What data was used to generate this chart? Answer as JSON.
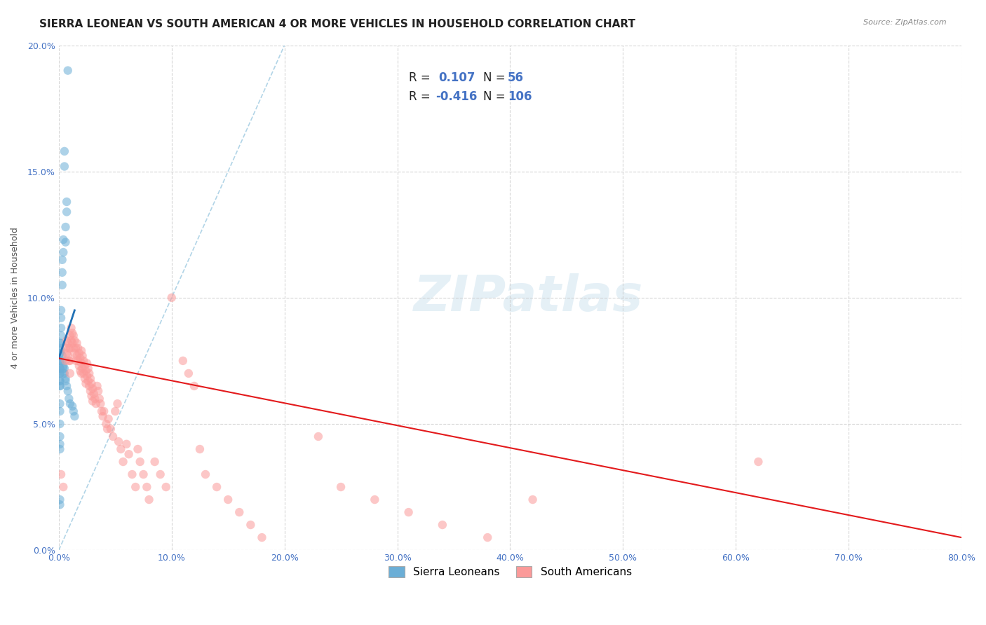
{
  "title": "SIERRA LEONEAN VS SOUTH AMERICAN 4 OR MORE VEHICLES IN HOUSEHOLD CORRELATION CHART",
  "source": "Source: ZipAtlas.com",
  "xlabel": "",
  "ylabel": "4 or more Vehicles in Household",
  "xlim": [
    0,
    0.8
  ],
  "ylim": [
    0,
    0.2
  ],
  "xticks": [
    0.0,
    0.1,
    0.2,
    0.3,
    0.4,
    0.5,
    0.6,
    0.7,
    0.8
  ],
  "yticks": [
    0.0,
    0.05,
    0.1,
    0.15,
    0.2
  ],
  "xlabel_labels": [
    "0.0%",
    "10.0%",
    "20.0%",
    "30.0%",
    "40.0%",
    "50.0%",
    "60.0%",
    "70.0%",
    "80.0%"
  ],
  "ylabel_labels": [
    "0.0%",
    "5.0%",
    "10.0%",
    "15.0%",
    "20.0%"
  ],
  "blue_color": "#6baed6",
  "pink_color": "#fb9a99",
  "blue_line_color": "#2171b5",
  "pink_line_color": "#e31a1c",
  "diag_line_color": "#9ecae1",
  "watermark": "ZIPatlas",
  "legend_R_blue": "0.107",
  "legend_N_blue": "56",
  "legend_R_pink": "-0.416",
  "legend_N_pink": "106",
  "blue_scatter_x": [
    0.008,
    0.005,
    0.005,
    0.007,
    0.007,
    0.006,
    0.006,
    0.004,
    0.004,
    0.003,
    0.003,
    0.003,
    0.002,
    0.002,
    0.002,
    0.002,
    0.001,
    0.001,
    0.001,
    0.001,
    0.001,
    0.001,
    0.001,
    0.001,
    0.002,
    0.002,
    0.003,
    0.003,
    0.004,
    0.004,
    0.004,
    0.005,
    0.005,
    0.006,
    0.006,
    0.007,
    0.008,
    0.009,
    0.01,
    0.012,
    0.013,
    0.014,
    0.001,
    0.001,
    0.001,
    0.001,
    0.001,
    0.001,
    0.001,
    0.001,
    0.001,
    0.001,
    0.001,
    0.001,
    0.001,
    0.001
  ],
  "blue_scatter_y": [
    0.19,
    0.158,
    0.152,
    0.138,
    0.134,
    0.128,
    0.122,
    0.123,
    0.118,
    0.115,
    0.11,
    0.105,
    0.095,
    0.092,
    0.088,
    0.085,
    0.082,
    0.08,
    0.078,
    0.075,
    0.072,
    0.07,
    0.067,
    0.065,
    0.082,
    0.079,
    0.077,
    0.075,
    0.073,
    0.072,
    0.07,
    0.072,
    0.07,
    0.068,
    0.067,
    0.065,
    0.063,
    0.06,
    0.058,
    0.057,
    0.055,
    0.053,
    0.078,
    0.075,
    0.072,
    0.07,
    0.067,
    0.065,
    0.058,
    0.055,
    0.05,
    0.045,
    0.042,
    0.04,
    0.02,
    0.018
  ],
  "pink_scatter_x": [
    0.002,
    0.004,
    0.006,
    0.006,
    0.007,
    0.007,
    0.008,
    0.008,
    0.009,
    0.009,
    0.01,
    0.01,
    0.01,
    0.01,
    0.011,
    0.011,
    0.012,
    0.012,
    0.013,
    0.013,
    0.014,
    0.014,
    0.015,
    0.015,
    0.016,
    0.016,
    0.017,
    0.017,
    0.018,
    0.018,
    0.019,
    0.019,
    0.02,
    0.02,
    0.02,
    0.021,
    0.021,
    0.022,
    0.022,
    0.023,
    0.023,
    0.024,
    0.024,
    0.025,
    0.025,
    0.026,
    0.026,
    0.027,
    0.027,
    0.028,
    0.028,
    0.029,
    0.029,
    0.03,
    0.03,
    0.031,
    0.032,
    0.033,
    0.034,
    0.035,
    0.036,
    0.037,
    0.038,
    0.039,
    0.04,
    0.042,
    0.043,
    0.044,
    0.046,
    0.048,
    0.05,
    0.052,
    0.053,
    0.055,
    0.057,
    0.06,
    0.062,
    0.065,
    0.068,
    0.07,
    0.072,
    0.075,
    0.078,
    0.08,
    0.085,
    0.09,
    0.095,
    0.1,
    0.11,
    0.115,
    0.12,
    0.125,
    0.13,
    0.14,
    0.15,
    0.16,
    0.17,
    0.18,
    0.23,
    0.25,
    0.28,
    0.31,
    0.34,
    0.38,
    0.42,
    0.62
  ],
  "pink_scatter_y": [
    0.03,
    0.025,
    0.08,
    0.075,
    0.083,
    0.078,
    0.082,
    0.077,
    0.08,
    0.075,
    0.085,
    0.08,
    0.075,
    0.07,
    0.088,
    0.083,
    0.086,
    0.082,
    0.085,
    0.08,
    0.083,
    0.078,
    0.08,
    0.075,
    0.082,
    0.077,
    0.08,
    0.075,
    0.078,
    0.073,
    0.076,
    0.071,
    0.079,
    0.074,
    0.07,
    0.077,
    0.072,
    0.075,
    0.07,
    0.073,
    0.068,
    0.071,
    0.066,
    0.074,
    0.069,
    0.072,
    0.067,
    0.07,
    0.065,
    0.068,
    0.063,
    0.066,
    0.061,
    0.064,
    0.059,
    0.062,
    0.06,
    0.058,
    0.065,
    0.063,
    0.06,
    0.058,
    0.055,
    0.053,
    0.055,
    0.05,
    0.048,
    0.052,
    0.048,
    0.045,
    0.055,
    0.058,
    0.043,
    0.04,
    0.035,
    0.042,
    0.038,
    0.03,
    0.025,
    0.04,
    0.035,
    0.03,
    0.025,
    0.02,
    0.035,
    0.03,
    0.025,
    0.1,
    0.075,
    0.07,
    0.065,
    0.04,
    0.03,
    0.025,
    0.02,
    0.015,
    0.01,
    0.005,
    0.045,
    0.025,
    0.02,
    0.015,
    0.01,
    0.005,
    0.02,
    0.035
  ],
  "blue_line_x": [
    0.0,
    0.014
  ],
  "blue_line_y": [
    0.076,
    0.095
  ],
  "pink_line_x": [
    0.0,
    0.8
  ],
  "pink_line_y": [
    0.076,
    0.005
  ],
  "diag_line_x": [
    0.0,
    0.2
  ],
  "diag_line_y": [
    0.0,
    0.2
  ],
  "bg_color": "#ffffff",
  "grid_color": "#cccccc",
  "title_fontsize": 11,
  "axis_fontsize": 9,
  "tick_fontsize": 9,
  "legend_fontsize": 11
}
